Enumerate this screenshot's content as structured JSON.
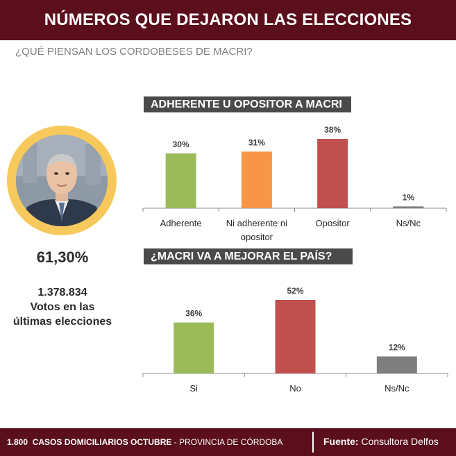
{
  "header": {
    "title": "NÚMEROS QUE DEJARON LAS ELECCIONES"
  },
  "subtitle": "¿QUÉ PIENSAN LOS CORDOBESES DE MACRI?",
  "profile": {
    "percentage": "61,30%",
    "votes_number": "1.378.834",
    "votes_label_1": "Votos en las",
    "votes_label_2": "últimas elecciones"
  },
  "chart_data": [
    {
      "type": "bar",
      "title": "ADHERENTE U OPOSITOR A MACRI",
      "categories": [
        "Adherente",
        "Ni adherente ni opositor",
        "Opositor",
        "Ns/Nc"
      ],
      "category_lines": [
        [
          "Adherente"
        ],
        [
          "Ni adherente ni",
          "opositor"
        ],
        [
          "Opositor"
        ],
        [
          "Ns/Nc"
        ]
      ],
      "values": [
        30,
        31,
        38,
        1
      ],
      "value_labels": [
        "30%",
        "31%",
        "38%",
        "1%"
      ],
      "colors": [
        "#9bbb59",
        "#f79646",
        "#c0504d",
        "#7f7f7f"
      ],
      "ylim": [
        0,
        38
      ],
      "xlabel": "",
      "ylabel": ""
    },
    {
      "type": "bar",
      "title": "¿MACRI VA A MEJORAR EL PAÍS?",
      "categories": [
        "Si",
        "No",
        "Ns/Nc"
      ],
      "category_lines": [
        [
          "Si"
        ],
        [
          "No"
        ],
        [
          "Ns/Nc"
        ]
      ],
      "values": [
        36,
        52,
        12
      ],
      "value_labels": [
        "36%",
        "52%",
        "12%"
      ],
      "colors": [
        "#9bbb59",
        "#c0504d",
        "#7f7f7f"
      ],
      "ylim": [
        0,
        52
      ],
      "xlabel": "",
      "ylabel": ""
    }
  ],
  "footer": {
    "count": "1.800",
    "cases": "CASOS DOMICILIARIOS OCTUBRE",
    "separator": " - ",
    "region": "PROVINCIA DE CÓRDOBA",
    "source_label": "Fuente:",
    "source_value": " Consultora Delfos"
  }
}
